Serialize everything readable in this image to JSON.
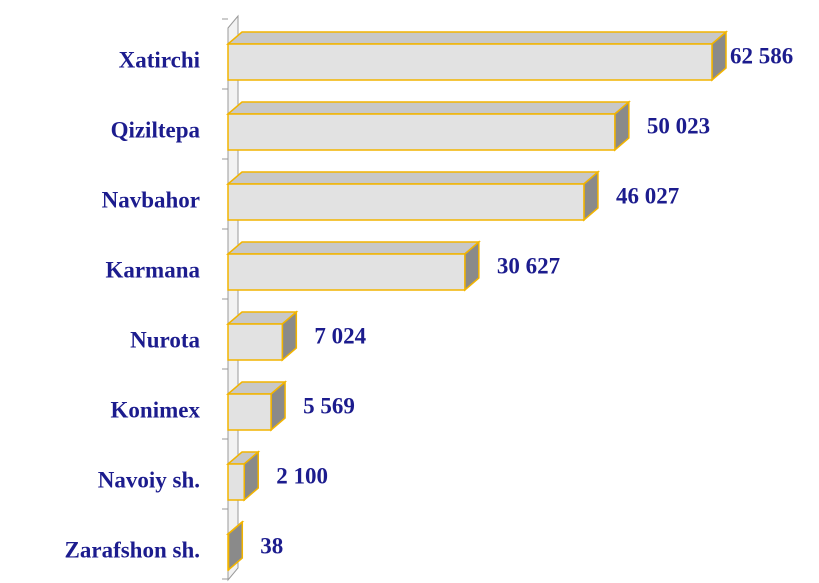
{
  "chart_data": {
    "type": "bar",
    "orientation": "horizontal",
    "categories": [
      "Xatirchi",
      "Qiziltepa",
      "Navbahor",
      "Karmana",
      "Nurota",
      "Konimex",
      "Navoiy sh.",
      "Zarafshon sh."
    ],
    "values": [
      62586,
      50023,
      46027,
      30627,
      7024,
      5569,
      2100,
      38
    ],
    "value_labels": [
      "62 586",
      "50 023",
      "46 027",
      "30 627",
      "7 024",
      "5 569",
      "2 100",
      "38"
    ],
    "color": "#e2e2e2"
  }
}
